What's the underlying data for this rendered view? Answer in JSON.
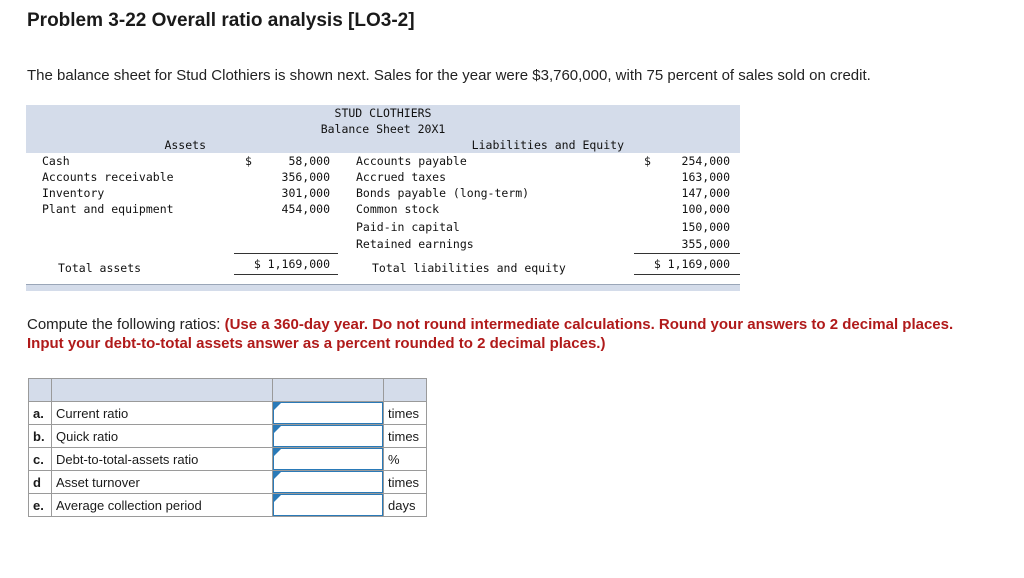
{
  "title": "Problem 3-22 Overall ratio analysis [LO3-2]",
  "intro": "The balance sheet for Stud Clothiers is shown next. Sales for the year were $3,760,000, with 75 percent of sales sold on credit.",
  "balance_sheet": {
    "company": "STUD CLOTHIERS",
    "subtitle": "Balance Sheet 20X1",
    "assets_header": "Assets",
    "liab_header": "Liabilities and Equity",
    "dollar": "$",
    "assets": [
      {
        "label": "Cash",
        "value": "58,000"
      },
      {
        "label": "Accounts receivable",
        "value": "356,000"
      },
      {
        "label": "Inventory",
        "value": "301,000"
      },
      {
        "label": "Plant and equipment",
        "value": "454,000"
      }
    ],
    "liabilities": [
      {
        "label": "Accounts payable",
        "value": "254,000"
      },
      {
        "label": "Accrued taxes",
        "value": "163,000"
      },
      {
        "label": "Bonds payable (long-term)",
        "value": "147,000"
      },
      {
        "label": "Common stock",
        "value": "100,000"
      },
      {
        "label": "Paid-in capital",
        "value": "150,000"
      },
      {
        "label": "Retained earnings",
        "value": "355,000"
      }
    ],
    "total_assets_label": "Total assets",
    "total_assets_value": "$ 1,169,000",
    "total_liab_label": "Total liabilities and equity",
    "total_liab_value": "$ 1,169,000"
  },
  "instructions": {
    "lead": "Compute the following ratios: ",
    "bold": "(Use a 360-day year. Do not round intermediate calculations. Round your answers to 2 decimal places. Input your debt-to-total assets answer as a percent rounded to 2 decimal places.)"
  },
  "ratios": [
    {
      "letter": "a.",
      "label": "Current ratio",
      "value": "",
      "unit": "times"
    },
    {
      "letter": "b.",
      "label": "Quick ratio",
      "value": "",
      "unit": "times"
    },
    {
      "letter": "c.",
      "label": "Debt-to-total-assets ratio",
      "value": "",
      "unit": "%"
    },
    {
      "letter": "d",
      "label": "Asset turnover",
      "value": "",
      "unit": "times"
    },
    {
      "letter": "e.",
      "label": "Average collection period",
      "value": "",
      "unit": "days"
    }
  ],
  "colors": {
    "header_fill": "#d4dcea",
    "input_border": "#2a7ab8",
    "emphasis": "#b01a1a"
  }
}
